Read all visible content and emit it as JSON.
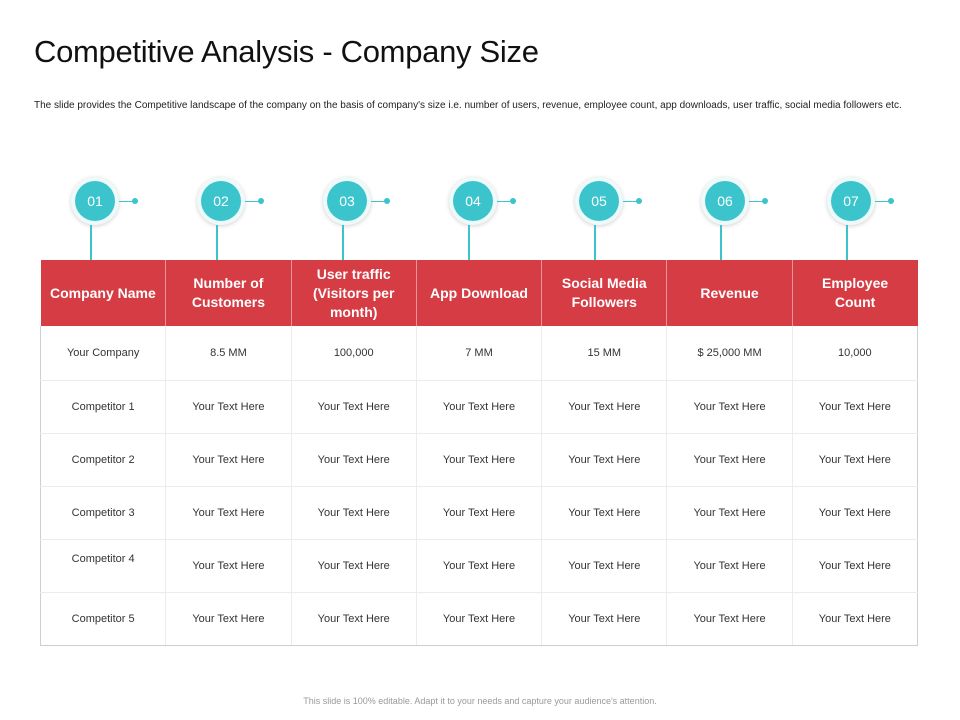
{
  "slide": {
    "title": "Competitive Analysis - Company Size",
    "subtitle": "The slide provides the Competitive landscape of the company on the basis of company's size i.e. number of users, revenue, employee count, app downloads, user traffic, social media followers etc.",
    "footer": "This slide is 100% editable. Adapt it to your needs and capture your audience's attention."
  },
  "colors": {
    "header_red": "#d63c44",
    "badge_teal": "#3cc4cc"
  },
  "badges": [
    "01",
    "02",
    "03",
    "04",
    "05",
    "06",
    "07"
  ],
  "table": {
    "headers": [
      "Company Name",
      "Number of Customers",
      "User traffic (Visitors per month)",
      "App Download",
      "Social Media Followers",
      "Revenue",
      "Employee Count"
    ],
    "rows": [
      [
        "Your Company",
        "8.5 MM",
        "100,000",
        "7 MM",
        "15 MM",
        "$ 25,000 MM",
        "10,000"
      ],
      [
        "Competitor 1",
        "Your Text Here",
        "Your Text Here",
        "Your Text Here",
        "Your Text Here",
        "Your Text Here",
        "Your Text Here"
      ],
      [
        "Competitor 2",
        "Your Text Here",
        "Your Text Here",
        "Your Text Here",
        "Your Text Here",
        "Your Text Here",
        "Your Text Here"
      ],
      [
        "Competitor 3",
        "Your Text Here",
        "Your Text Here",
        "Your Text Here",
        "Your Text Here",
        "Your Text Here",
        "Your Text Here"
      ],
      [
        "Competitor 4",
        "Your Text Here",
        "Your Text Here",
        "Your Text Here",
        "Your Text Here",
        "Your Text Here",
        "Your Text Here"
      ],
      [
        "Competitor 5",
        "Your Text Here",
        "Your Text Here",
        "Your Text Here",
        "Your Text Here",
        "Your Text Here",
        "Your Text Here"
      ]
    ]
  }
}
